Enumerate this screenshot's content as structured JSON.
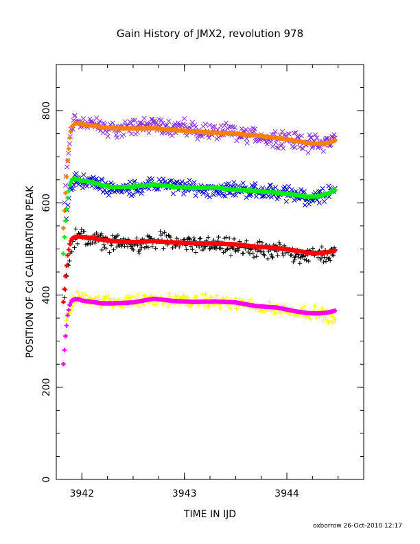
{
  "chart_data": {
    "type": "scatter",
    "title": "Gain History of JMX2, revolution 978",
    "xlabel": "TIME IN IJD",
    "ylabel": "POSITION OF Cd CALIBRATION PEAK",
    "xlim": [
      3941.75,
      3944.75
    ],
    "ylim": [
      0,
      900
    ],
    "x_ticks": [
      3942,
      3943,
      3944
    ],
    "x_tick_labels": [
      "3942",
      "3943",
      "3944"
    ],
    "y_ticks": [
      0,
      200,
      400,
      600,
      800
    ],
    "y_tick_labels": [
      "0",
      "200",
      "400",
      "600",
      "800"
    ],
    "grid": false,
    "legend": "none",
    "footer": "oxborrow 26-Oct-2010 12:17",
    "series": [
      {
        "marker": "x",
        "color": "#8a2be2",
        "scatter": 14,
        "x": [
          3941.83,
          3941.86,
          3941.89,
          3941.92,
          3941.95,
          3942.0,
          3942.1,
          3942.2,
          3942.4,
          3942.6,
          3942.8,
          3943.0,
          3943.2,
          3943.4,
          3943.6,
          3943.8,
          3944.0,
          3944.2,
          3944.35,
          3944.47
        ],
        "y": [
          600,
          690,
          750,
          785,
          780,
          775,
          770,
          762,
          760,
          770,
          768,
          762,
          755,
          752,
          748,
          742,
          738,
          730,
          728,
          740
        ]
      },
      {
        "marker": "line",
        "color": "#ff7f00",
        "x": [
          3941.82,
          3941.84,
          3941.86,
          3941.88,
          3941.9,
          3941.93,
          3941.97,
          3942.0,
          3942.1,
          3942.2,
          3942.3,
          3942.5,
          3942.7,
          3942.9,
          3943.1,
          3943.3,
          3943.5,
          3943.7,
          3943.9,
          3944.1,
          3944.2,
          3944.3,
          3944.4,
          3944.47
        ],
        "y": [
          545,
          620,
          690,
          740,
          765,
          772,
          773,
          770,
          768,
          764,
          762,
          761,
          762,
          758,
          755,
          752,
          750,
          746,
          741,
          734,
          730,
          728,
          730,
          735
        ]
      },
      {
        "marker": "x",
        "color": "#0000cd",
        "scatter": 12,
        "x": [
          3941.85,
          3941.88,
          3941.92,
          3941.95,
          3942.0,
          3942.1,
          3942.2,
          3942.4,
          3942.6,
          3942.8,
          3943.0,
          3943.2,
          3943.4,
          3943.6,
          3943.8,
          3944.0,
          3944.2,
          3944.35,
          3944.47
        ],
        "y": [
          560,
          625,
          650,
          655,
          648,
          645,
          635,
          630,
          637,
          640,
          632,
          630,
          630,
          628,
          625,
          620,
          612,
          615,
          628
        ]
      },
      {
        "marker": "line",
        "color": "#00ee00",
        "x": [
          3941.82,
          3941.84,
          3941.86,
          3941.88,
          3941.9,
          3941.93,
          3941.97,
          3942.0,
          3942.1,
          3942.2,
          3942.3,
          3942.5,
          3942.7,
          3942.9,
          3943.1,
          3943.3,
          3943.5,
          3943.7,
          3943.9,
          3944.1,
          3944.2,
          3944.3,
          3944.4,
          3944.47
        ],
        "y": [
          490,
          560,
          610,
          638,
          650,
          653,
          650,
          648,
          645,
          638,
          634,
          635,
          640,
          635,
          632,
          633,
          628,
          626,
          622,
          617,
          613,
          614,
          620,
          628
        ]
      },
      {
        "marker": "+",
        "color": "#000000",
        "scatter": 14,
        "x": [
          3941.83,
          3941.86,
          3941.9,
          3941.95,
          3942.0,
          3942.1,
          3942.2,
          3942.4,
          3942.6,
          3942.8,
          3943.0,
          3943.2,
          3943.4,
          3943.6,
          3943.8,
          3944.0,
          3944.2,
          3944.35,
          3944.47
        ],
        "y": [
          400,
          470,
          510,
          530,
          525,
          520,
          515,
          510,
          512,
          518,
          510,
          510,
          505,
          500,
          495,
          495,
          485,
          488,
          490
        ]
      },
      {
        "marker": "line",
        "color": "#ff0000",
        "x": [
          3941.82,
          3941.84,
          3941.86,
          3941.88,
          3941.9,
          3941.93,
          3941.97,
          3942.0,
          3942.1,
          3942.2,
          3942.3,
          3942.5,
          3942.7,
          3942.9,
          3943.1,
          3943.3,
          3943.5,
          3943.7,
          3943.9,
          3944.1,
          3944.2,
          3944.3,
          3944.4,
          3944.47
        ],
        "y": [
          385,
          440,
          485,
          510,
          522,
          526,
          527,
          526,
          524,
          520,
          517,
          515,
          517,
          514,
          512,
          512,
          510,
          505,
          502,
          496,
          492,
          491,
          493,
          496
        ]
      },
      {
        "marker": "+",
        "color": "#ffff00",
        "scatter": 10,
        "x": [
          3941.85,
          3941.9,
          3941.95,
          3942.0,
          3942.1,
          3942.2,
          3942.4,
          3942.6,
          3942.8,
          3943.0,
          3943.2,
          3943.4,
          3943.6,
          3943.8,
          3944.0,
          3944.2,
          3944.35,
          3944.47
        ],
        "y": [
          340,
          380,
          395,
          398,
          392,
          385,
          385,
          388,
          390,
          388,
          388,
          385,
          378,
          372,
          368,
          362,
          360,
          345
        ]
      },
      {
        "marker": "line",
        "color": "#ff00ff",
        "x": [
          3941.82,
          3941.84,
          3941.86,
          3941.88,
          3941.9,
          3941.93,
          3941.97,
          3942.0,
          3942.1,
          3942.2,
          3942.3,
          3942.5,
          3942.7,
          3942.9,
          3943.1,
          3943.3,
          3943.5,
          3943.7,
          3943.9,
          3944.1,
          3944.2,
          3944.3,
          3944.4,
          3944.47
        ],
        "y": [
          250,
          310,
          355,
          378,
          388,
          391,
          391,
          388,
          385,
          382,
          382,
          384,
          392,
          387,
          385,
          386,
          384,
          376,
          373,
          364,
          361,
          360,
          362,
          366
        ]
      }
    ]
  }
}
